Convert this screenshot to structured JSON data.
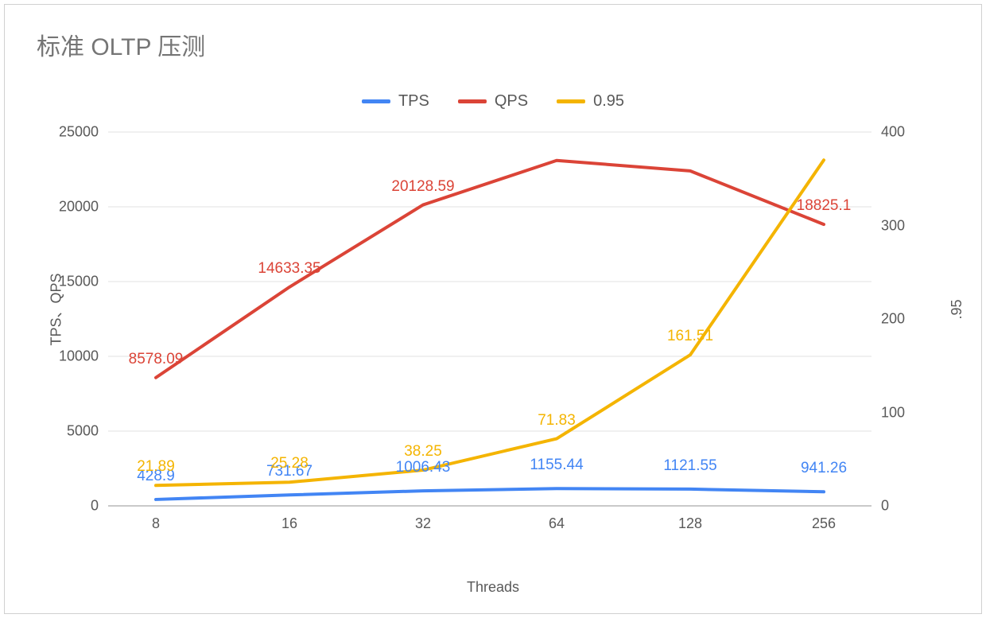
{
  "chart": {
    "type": "line",
    "title": "标准 OLTP 压测",
    "title_fontsize": 30,
    "title_color": "#757575",
    "background_color": "#ffffff",
    "border_color": "#d0d0d0",
    "x_axis": {
      "label": "Threads",
      "categories": [
        "8",
        "16",
        "32",
        "64",
        "128",
        "256"
      ],
      "tick_fontsize": 18,
      "tick_color": "#595959"
    },
    "y_left": {
      "label": "TPS、QPS",
      "min": 0,
      "max": 25000,
      "step": 5000,
      "ticks": [
        0,
        5000,
        10000,
        15000,
        20000,
        25000
      ],
      "tick_fontsize": 18,
      "tick_color": "#595959"
    },
    "y_right": {
      "label": ".95",
      "min": 0,
      "max": 400,
      "step": 100,
      "ticks": [
        0,
        100,
        200,
        300,
        400
      ],
      "tick_fontsize": 18,
      "tick_color": "#595959"
    },
    "gridline_color": "#e2e2e2",
    "baseline_color": "#b7b7b7",
    "label_fontsize": 19,
    "line_width": 4,
    "series": [
      {
        "name": "TPS",
        "axis": "left",
        "color": "#4285f4",
        "values": [
          428.9,
          731.67,
          1006.43,
          1155.44,
          1121.55,
          941.26
        ],
        "labels": [
          "428.9",
          "731.67",
          "1006.43",
          "1155.44",
          "1121.55",
          "941.26"
        ],
        "label_offset_y": -18
      },
      {
        "name": "QPS",
        "axis": "left",
        "color": "#db4437",
        "values": [
          8578.09,
          14633.35,
          20128.59,
          23100,
          22400,
          18825.1
        ],
        "labels": [
          "8578.09",
          "14633.35",
          "20128.59",
          "",
          "",
          "18825.1"
        ],
        "label_offset_y": -12
      },
      {
        "name": "0.95",
        "axis": "right",
        "color": "#f4b400",
        "values": [
          21.89,
          25.28,
          38.25,
          71.83,
          161.51,
          370
        ],
        "labels": [
          "21.89",
          "25.28",
          "38.25",
          "71.83",
          "161.51",
          ""
        ],
        "label_offset_y": -12
      }
    ],
    "legend": {
      "position": "top-center",
      "fontsize": 20,
      "text_color": "#595959"
    }
  }
}
